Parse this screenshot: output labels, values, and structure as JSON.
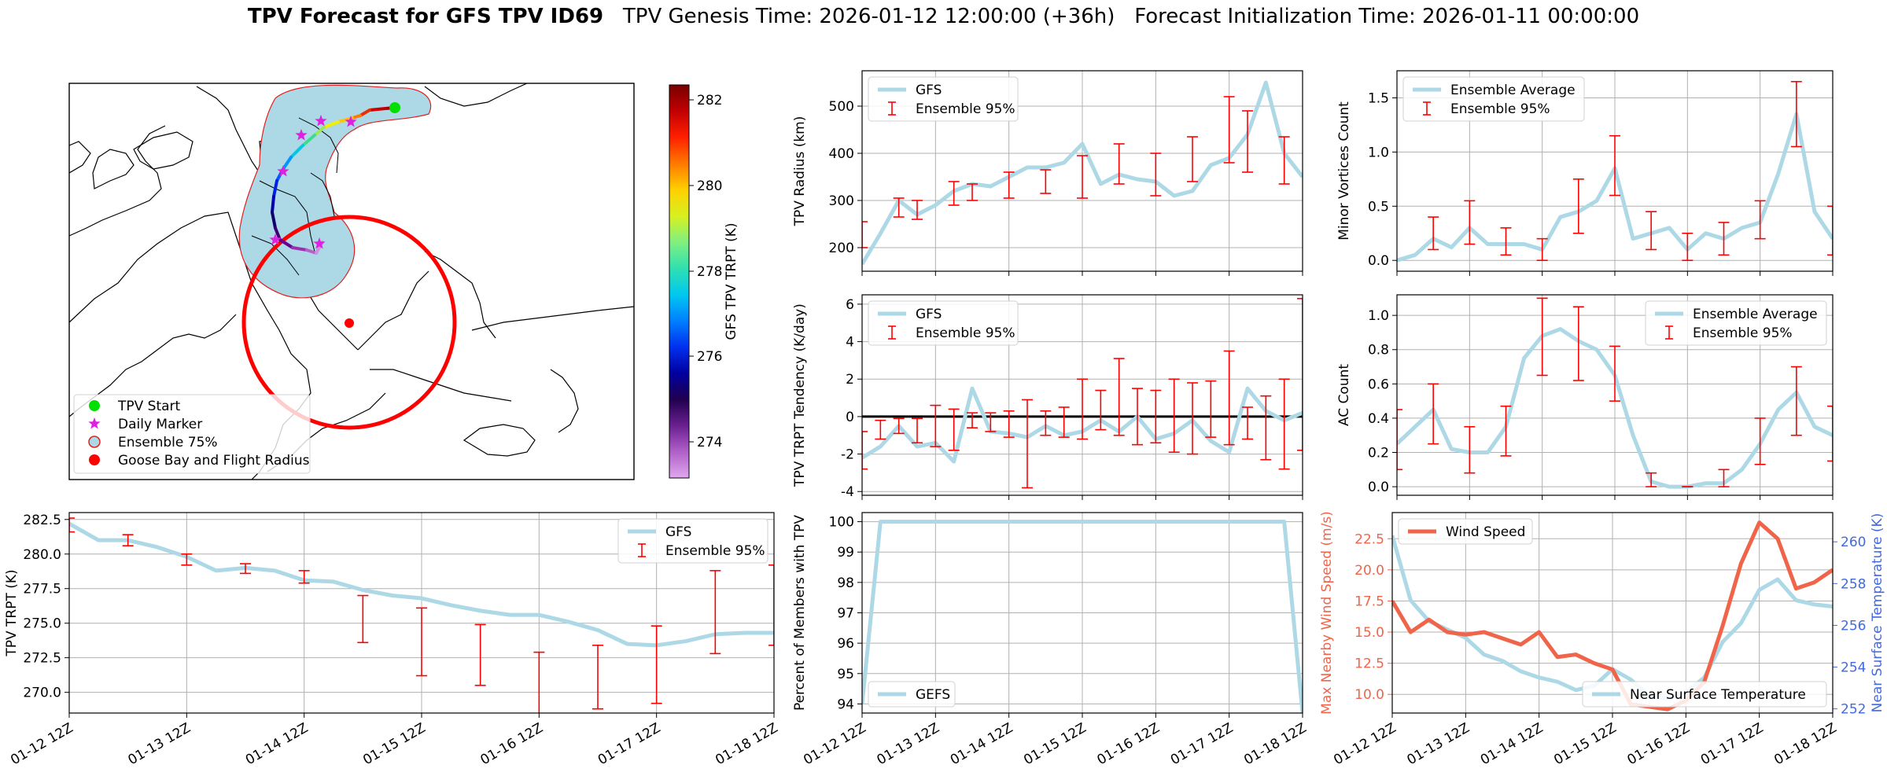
{
  "title": {
    "bold": "TPV Forecast for GFS TPV ID69",
    "genesis": "TPV Genesis Time: 2026-01-12 12:00:00 (+36h)",
    "init": "Forecast Initialization Time: 2026-01-11 00:00:00"
  },
  "colors": {
    "gfs_line": "#add8e6",
    "error_bar": "#ff0000",
    "wind_line": "#f0644a",
    "temp_axis": "#4169e1",
    "land_fill": "#add8e6",
    "flight_radius": "#ff0000"
  },
  "time_labels": [
    "01-12 12Z",
    "01-13 12Z",
    "01-14 12Z",
    "01-15 12Z",
    "01-16 12Z",
    "01-17 12Z",
    "01-18 12Z"
  ],
  "map": {
    "legend": [
      "TPV Start",
      "Daily Marker",
      "Ensemble 75%",
      "Goose Bay and Flight Radius"
    ],
    "colorbar_label": "GFS TPV TRPT (K)",
    "colorbar_ticks": [
      "282",
      "280",
      "278",
      "276",
      "274"
    ],
    "icons": [
      "start-marker-icon",
      "star-marker-icon",
      "ensemble-patch-icon",
      "goose-bay-marker-icon"
    ]
  },
  "chart_data": [
    {
      "id": "radius",
      "type": "line",
      "ylabel": "TPV Radius (km)",
      "ylim": [
        150,
        575
      ],
      "yticks": [
        "200",
        "300",
        "400",
        "500"
      ],
      "legend": [
        "GFS",
        "Ensemble 95%"
      ],
      "x": [
        0,
        0.25,
        0.5,
        0.75,
        1,
        1.25,
        1.5,
        1.75,
        2,
        2.25,
        2.5,
        2.75,
        3,
        3.25,
        3.5,
        3.75,
        4,
        4.25,
        4.5,
        4.75,
        5,
        5.25,
        5.5,
        5.75,
        6
      ],
      "series": [
        {
          "name": "GFS",
          "values": [
            165,
            230,
            300,
            270,
            290,
            320,
            335,
            330,
            350,
            370,
            370,
            380,
            420,
            335,
            355,
            345,
            340,
            310,
            320,
            375,
            390,
            440,
            550,
            400,
            350
          ]
        }
      ],
      "error_x": [
        0,
        0.5,
        0.75,
        1.25,
        1.5,
        2,
        2.5,
        3,
        3.5,
        4,
        4.5,
        5,
        5.25,
        5.75
      ],
      "error_low": [
        200,
        265,
        260,
        290,
        300,
        305,
        315,
        305,
        335,
        310,
        340,
        380,
        360,
        335
      ],
      "error_high": [
        255,
        305,
        300,
        340,
        335,
        360,
        365,
        395,
        420,
        400,
        435,
        520,
        490,
        435
      ]
    },
    {
      "id": "minor_vortices",
      "type": "line",
      "ylabel": "Minor Vortices Count",
      "ylim": [
        -0.1,
        1.75
      ],
      "yticks": [
        "0.0",
        "0.5",
        "1.0",
        "1.5"
      ],
      "legend": [
        "Ensemble Average",
        "Ensemble 95%"
      ],
      "x": [
        0,
        0.25,
        0.5,
        0.75,
        1,
        1.25,
        1.5,
        1.75,
        2,
        2.25,
        2.5,
        2.75,
        3,
        3.25,
        3.5,
        3.75,
        4,
        4.25,
        4.5,
        4.75,
        5,
        5.25,
        5.5,
        5.75,
        6
      ],
      "series": [
        {
          "name": "Ensemble Average",
          "values": [
            0,
            0.05,
            0.2,
            0.12,
            0.3,
            0.15,
            0.15,
            0.15,
            0.1,
            0.4,
            0.45,
            0.55,
            0.85,
            0.2,
            0.25,
            0.3,
            0.1,
            0.25,
            0.2,
            0.3,
            0.35,
            0.8,
            1.35,
            0.45,
            0.2
          ]
        }
      ],
      "error_x": [
        0.5,
        1,
        1.5,
        2,
        2.5,
        3,
        3.5,
        4,
        4.5,
        5,
        5.5,
        6
      ],
      "error_low": [
        0.1,
        0.15,
        0.05,
        0,
        0.25,
        0.6,
        0.1,
        0,
        0.05,
        0.2,
        1.05,
        0.05
      ],
      "error_high": [
        0.4,
        0.55,
        0.3,
        0.2,
        0.75,
        1.15,
        0.45,
        0.25,
        0.35,
        0.55,
        1.65,
        0.5
      ]
    },
    {
      "id": "tendency",
      "type": "line",
      "ylabel": "TPV TRPT Tendency (K/day)",
      "ylim": [
        -4.2,
        6.5
      ],
      "yticks": [
        "-4",
        "-2",
        "0",
        "2",
        "4",
        "6"
      ],
      "legend": [
        "GFS",
        "Ensemble 95%"
      ],
      "x": [
        0,
        0.25,
        0.5,
        0.75,
        1,
        1.25,
        1.5,
        1.75,
        2,
        2.25,
        2.5,
        2.75,
        3,
        3.25,
        3.5,
        3.75,
        4,
        4.25,
        4.5,
        4.75,
        5,
        5.25,
        5.5,
        5.75,
        6
      ],
      "series": [
        {
          "name": "GFS",
          "values": [
            -2.2,
            -1.6,
            -0.5,
            -1.6,
            -1.4,
            -2.4,
            1.5,
            -0.8,
            -0.9,
            -1.1,
            -0.5,
            -1,
            -0.8,
            -0.2,
            -0.8,
            0,
            -1.2,
            -0.9,
            -0.2,
            -1.3,
            -1.9,
            1.5,
            0.3,
            -0.2,
            0.2
          ]
        }
      ],
      "error_x": [
        0,
        0.25,
        0.5,
        0.75,
        1,
        1.25,
        1.5,
        1.75,
        2,
        2.25,
        2.5,
        2.75,
        3,
        3.25,
        3.5,
        3.75,
        4,
        4.25,
        4.5,
        4.75,
        5,
        5.25,
        5.5,
        5.75,
        6
      ],
      "error_low": [
        -2.8,
        -1.2,
        -0.9,
        -1.4,
        -1.6,
        -1.8,
        -0.6,
        -0.8,
        -1.1,
        -3.8,
        -1,
        -1.1,
        -1.2,
        -0.7,
        -1,
        -1.5,
        -1.4,
        -1.9,
        -2,
        -1.1,
        -1.5,
        -1.2,
        -2.3,
        -2.8,
        -1.8
      ],
      "error_high": [
        -0.8,
        -0.2,
        -0.1,
        -0.1,
        0.6,
        0.4,
        0.2,
        0.2,
        0.3,
        0.9,
        0.3,
        0.5,
        2,
        1.4,
        3.1,
        1.5,
        1.4,
        2,
        1.8,
        1.9,
        3.5,
        0.5,
        1.1,
        2,
        6.3
      ]
    },
    {
      "id": "ac_count",
      "type": "line",
      "ylabel": "AC Count",
      "ylim": [
        -0.05,
        1.12
      ],
      "yticks": [
        "0.0",
        "0.2",
        "0.4",
        "0.6",
        "0.8",
        "1.0"
      ],
      "legend": [
        "Ensemble Average",
        "Ensemble 95%"
      ],
      "x": [
        0,
        0.25,
        0.5,
        0.75,
        1,
        1.25,
        1.5,
        1.75,
        2,
        2.25,
        2.5,
        2.75,
        3,
        3.25,
        3.5,
        3.75,
        4,
        4.25,
        4.5,
        4.75,
        5,
        5.25,
        5.5,
        5.75,
        6
      ],
      "series": [
        {
          "name": "Ensemble Average",
          "values": [
            0.25,
            0.35,
            0.45,
            0.22,
            0.2,
            0.2,
            0.35,
            0.75,
            0.88,
            0.92,
            0.85,
            0.8,
            0.65,
            0.3,
            0.03,
            0,
            0,
            0.02,
            0.02,
            0.1,
            0.25,
            0.45,
            0.55,
            0.35,
            0.3
          ]
        }
      ],
      "error_x": [
        0,
        0.5,
        1,
        1.5,
        2,
        2.5,
        3,
        3.5,
        4,
        4.5,
        5,
        5.5,
        6
      ],
      "error_low": [
        0.1,
        0.25,
        0.08,
        0.18,
        0.65,
        0.62,
        0.5,
        0,
        0,
        0,
        0.13,
        0.3,
        0.15
      ],
      "error_high": [
        0.45,
        0.6,
        0.35,
        0.47,
        1.1,
        1.05,
        0.82,
        0.08,
        0,
        0.1,
        0.4,
        0.7,
        0.47
      ]
    },
    {
      "id": "trpt",
      "type": "line",
      "ylabel": "TPV TRPT (K)",
      "ylim": [
        268.5,
        283
      ],
      "yticks": [
        "270.0",
        "272.5",
        "275.0",
        "277.5",
        "280.0",
        "282.5"
      ],
      "legend": [
        "GFS",
        "Ensemble 95%"
      ],
      "x": [
        0,
        0.25,
        0.5,
        0.75,
        1,
        1.25,
        1.5,
        1.75,
        2,
        2.25,
        2.5,
        2.75,
        3,
        3.25,
        3.5,
        3.75,
        4,
        4.25,
        4.5,
        4.75,
        5,
        5.25,
        5.5,
        5.75,
        6
      ],
      "series": [
        {
          "name": "GFS",
          "values": [
            282.2,
            281,
            281,
            280.5,
            279.8,
            278.8,
            279,
            278.8,
            278.1,
            278,
            277.4,
            277,
            276.8,
            276.3,
            275.9,
            275.6,
            275.6,
            275.1,
            274.5,
            273.5,
            273.4,
            273.7,
            274.2,
            274.3,
            274.3
          ]
        }
      ],
      "error_x": [
        0,
        0.5,
        1,
        1.5,
        2,
        2.5,
        3,
        3.5,
        4,
        4.5,
        5,
        5.5,
        6
      ],
      "error_low": [
        281.6,
        280.6,
        279.2,
        278.6,
        277.9,
        273.6,
        271.2,
        270.5,
        268.3,
        268.8,
        269.2,
        272.8,
        273.4
      ],
      "error_high": [
        282.6,
        281.4,
        280,
        279.3,
        278.8,
        277,
        276.1,
        274.9,
        272.9,
        273.4,
        274.8,
        278.8,
        279.2
      ]
    },
    {
      "id": "members",
      "type": "line",
      "ylabel": "Percent of Members with TPV",
      "ylim": [
        93.7,
        100.3
      ],
      "yticks": [
        "94",
        "95",
        "96",
        "97",
        "98",
        "99",
        "100"
      ],
      "legend": [
        "GEFS"
      ],
      "x": [
        0,
        0.25,
        0.5,
        1,
        2,
        3,
        4,
        5,
        5.75,
        6
      ],
      "series": [
        {
          "name": "GEFS",
          "values": [
            94,
            100,
            100,
            100,
            100,
            100,
            100,
            100,
            100,
            93.7
          ]
        }
      ]
    },
    {
      "id": "wind_temp",
      "type": "line",
      "ylabel": "Max Nearby Wind Speed (m/s)",
      "ylim": [
        8.5,
        24.6
      ],
      "yticks": [
        "10.0",
        "12.5",
        "15.0",
        "17.5",
        "20.0",
        "22.5"
      ],
      "ylabel2": "Near Surface Temperature (K)",
      "ylim2": [
        251.8,
        261.4
      ],
      "yticks2": [
        "252",
        "254",
        "256",
        "258",
        "260"
      ],
      "legend": [
        "Wind Speed"
      ],
      "legend2": [
        "Near Surface Temperature"
      ],
      "x": [
        0,
        0.25,
        0.5,
        0.75,
        1,
        1.25,
        1.5,
        1.75,
        2,
        2.25,
        2.5,
        2.75,
        3,
        3.25,
        3.5,
        3.75,
        4,
        4.25,
        4.5,
        4.75,
        5,
        5.25,
        5.5,
        5.75,
        6
      ],
      "series": [
        {
          "name": "Wind Speed",
          "values": [
            17.5,
            15,
            16,
            15,
            14.8,
            15,
            14.5,
            14,
            15,
            13,
            13.2,
            12.5,
            12,
            9.2,
            9,
            8.8,
            9.5,
            11,
            15.5,
            20.5,
            23.8,
            22.5,
            18.5,
            19,
            20
          ]
        },
        {
          "name": "Near Surface Temperature",
          "values": [
            260.3,
            257.2,
            256.2,
            255.8,
            255.4,
            254.6,
            254.3,
            253.8,
            253.5,
            253.3,
            252.9,
            253.1,
            253.9,
            253.4,
            252.6,
            252.5,
            252.8,
            253.5,
            255.2,
            256.1,
            257.7,
            258.2,
            257.2,
            257,
            256.9
          ]
        }
      ]
    }
  ]
}
